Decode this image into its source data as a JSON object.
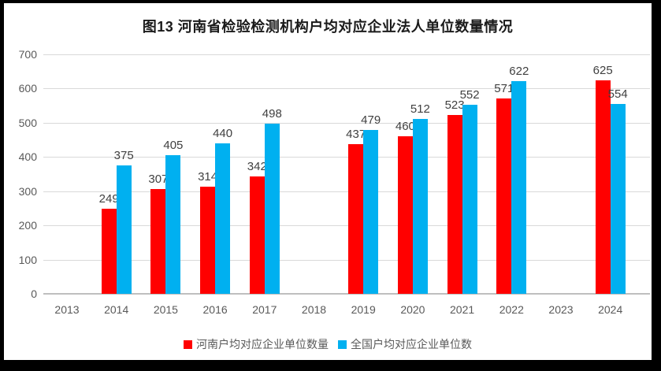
{
  "chart_data": {
    "type": "bar",
    "title": "图13 河南省检验检测机构户均对应企业法人单位数量情况",
    "categories": [
      "2013",
      "2014",
      "2015",
      "2016",
      "2017",
      "2018",
      "2019",
      "2020",
      "2021",
      "2022",
      "2023",
      "2024"
    ],
    "series": [
      {
        "name": "河南户均对应企业单位数量",
        "color": "#FF0000",
        "values": [
          null,
          249,
          307,
          314,
          342,
          null,
          437,
          460,
          523,
          571,
          null,
          625
        ]
      },
      {
        "name": "全国户均对应企业单位数",
        "color": "#00B0F0",
        "values": [
          null,
          375,
          405,
          440,
          498,
          null,
          479,
          512,
          552,
          622,
          null,
          554
        ]
      }
    ],
    "ylim": [
      0,
      700
    ],
    "y_ticks": [
      0,
      100,
      200,
      300,
      400,
      500,
      600,
      700
    ],
    "xlabel": "",
    "ylabel": "",
    "grid": "horizontal",
    "legend_position": "bottom",
    "data_labels": true,
    "colors": {
      "gridline": "#D9D9D9",
      "axis_line": "#BFBFBF",
      "axis_label": "#595959",
      "value_label": "#404040",
      "title": "#1A1A1A",
      "plot_background": "#FFFFFF",
      "frame_border": "#000000"
    }
  }
}
